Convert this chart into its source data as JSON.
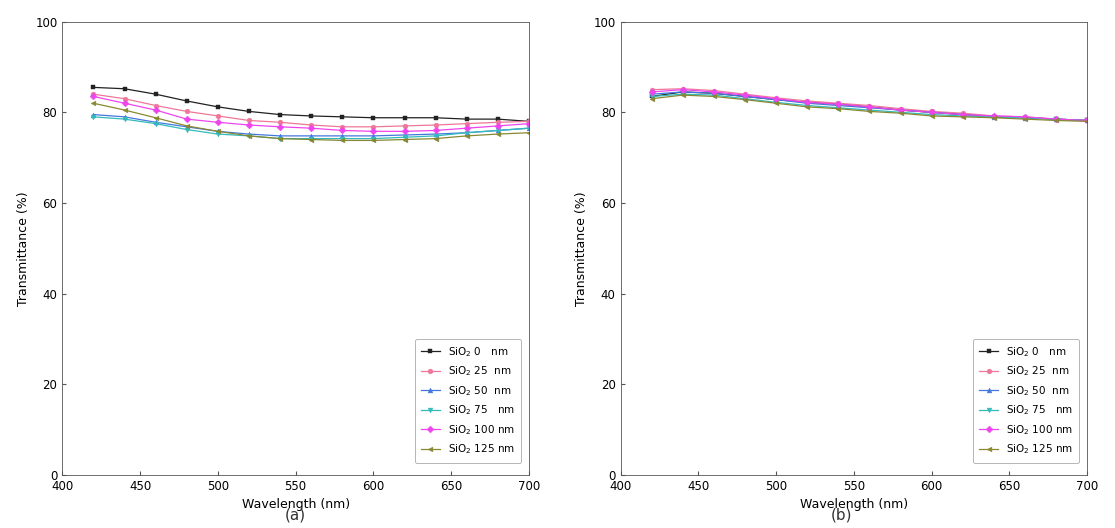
{
  "wavelengths": [
    420,
    440,
    460,
    480,
    500,
    520,
    540,
    560,
    580,
    600,
    620,
    640,
    660,
    680,
    700
  ],
  "series_labels_a": [
    "SiO$_2$ 0   nm",
    "SiO$_2$ 25  nm",
    "SiO$_2$ 50  nm",
    "SiO$_2$ 75   nm",
    "SiO$_2$ 100 nm",
    "SiO$_2$ 125 nm"
  ],
  "series_labels_b": [
    "SiO$_2$ 0   nm",
    "SiO$_2$ 25  nm",
    "SiO$_2$ 50  nm",
    "SiO$_2$ 75   nm",
    "SiO$_2$ 100 nm",
    "SiO$_2$ 125 nm"
  ],
  "colors": [
    "#222222",
    "#ee7799",
    "#4477dd",
    "#33bbbb",
    "#ee44ee",
    "#888833"
  ],
  "markers": [
    "s",
    "o",
    "^",
    "v",
    "D",
    "<"
  ],
  "panel_a": {
    "data": [
      [
        85.5,
        85.2,
        84.0,
        82.5,
        81.2,
        80.2,
        79.5,
        79.2,
        79.0,
        78.8,
        78.8,
        78.8,
        78.5,
        78.5,
        78.0
      ],
      [
        84.0,
        83.0,
        81.5,
        80.2,
        79.2,
        78.2,
        77.8,
        77.2,
        76.8,
        76.8,
        77.0,
        77.2,
        77.5,
        77.8,
        78.0
      ],
      [
        79.5,
        79.0,
        77.8,
        76.8,
        75.8,
        75.2,
        74.8,
        74.8,
        74.8,
        74.8,
        75.0,
        75.2,
        75.5,
        76.0,
        76.5
      ],
      [
        79.0,
        78.5,
        77.5,
        76.2,
        75.2,
        74.8,
        74.2,
        74.2,
        74.2,
        74.2,
        74.5,
        74.8,
        75.5,
        76.0,
        76.5
      ],
      [
        83.5,
        82.0,
        80.5,
        78.5,
        77.8,
        77.2,
        76.8,
        76.5,
        76.0,
        75.8,
        75.8,
        76.0,
        76.5,
        77.0,
        77.5
      ],
      [
        82.0,
        80.5,
        78.8,
        77.0,
        75.8,
        74.8,
        74.2,
        74.0,
        73.8,
        73.8,
        74.0,
        74.2,
        74.8,
        75.2,
        75.5
      ]
    ]
  },
  "panel_b": {
    "data": [
      [
        83.5,
        84.5,
        84.2,
        83.5,
        82.8,
        82.2,
        81.8,
        81.2,
        80.5,
        80.0,
        79.5,
        79.0,
        78.8,
        78.5,
        78.2
      ],
      [
        85.0,
        85.2,
        84.8,
        84.0,
        83.2,
        82.5,
        82.0,
        81.5,
        80.8,
        80.2,
        79.8,
        79.2,
        79.0,
        78.5,
        78.2
      ],
      [
        84.0,
        84.5,
        84.2,
        83.5,
        82.8,
        82.0,
        81.5,
        81.0,
        80.5,
        80.0,
        79.5,
        79.0,
        78.8,
        78.5,
        78.2
      ],
      [
        83.5,
        84.0,
        83.8,
        83.0,
        82.2,
        81.5,
        81.0,
        80.5,
        80.0,
        79.5,
        79.2,
        79.0,
        78.8,
        78.5,
        78.2
      ],
      [
        84.5,
        85.0,
        84.5,
        83.8,
        83.0,
        82.2,
        81.8,
        81.2,
        80.5,
        80.0,
        79.5,
        79.2,
        79.0,
        78.5,
        78.2
      ],
      [
        83.0,
        83.8,
        83.5,
        82.8,
        82.0,
        81.2,
        80.8,
        80.2,
        79.8,
        79.2,
        79.0,
        78.8,
        78.5,
        78.2,
        78.0
      ]
    ]
  },
  "xlabel": "Wavelength (nm)",
  "ylabel": "Transmittance (%)",
  "xlim": [
    400,
    700
  ],
  "ylim": [
    0,
    100
  ],
  "xticks": [
    400,
    450,
    500,
    550,
    600,
    650,
    700
  ],
  "yticks": [
    0,
    20,
    40,
    60,
    80,
    100
  ],
  "label_a": "(a)",
  "label_b": "(b)",
  "bg_color": "#ffffff",
  "markersize": 3.5,
  "linewidth": 0.9,
  "legend_fontsize": 7.5,
  "axis_label_fontsize": 9,
  "tick_fontsize": 8.5,
  "caption_fontsize": 11
}
